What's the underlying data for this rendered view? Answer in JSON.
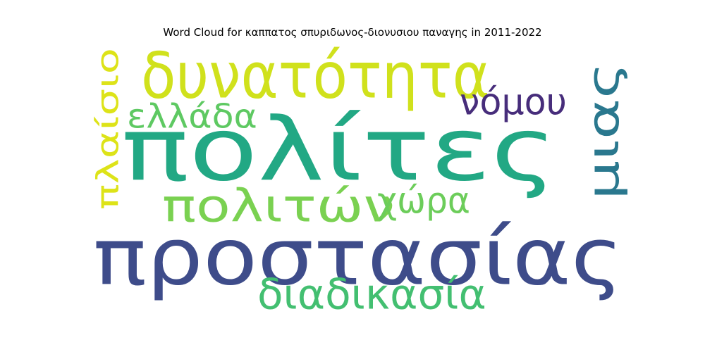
{
  "chart_data": {
    "type": "wordcloud",
    "title": "Word Cloud for καππατος σπυριδωνος-διονυσιου παναγης in 2011-2022",
    "background": "#ffffff",
    "colormap": "viridis",
    "words": [
      {
        "text": "πολίτες",
        "weight": 1.0,
        "color": "#22a884"
      },
      {
        "text": "προστασίας",
        "weight": 0.93,
        "color": "#3e4c8a"
      },
      {
        "text": "δυνατότητα",
        "weight": 0.62,
        "color": "#d0e11c"
      },
      {
        "text": "μιας",
        "weight": 0.56,
        "color": "#2a788e"
      },
      {
        "text": "πλαίσιο",
        "weight": 0.48,
        "color": "#dde318"
      },
      {
        "text": "πολιτών",
        "weight": 0.47,
        "color": "#7ad151"
      },
      {
        "text": "διαδικασία",
        "weight": 0.44,
        "color": "#43bf71"
      },
      {
        "text": "χώρα",
        "weight": 0.43,
        "color": "#6ccd5a"
      },
      {
        "text": "ελλάδα",
        "weight": 0.39,
        "color": "#5ec962"
      },
      {
        "text": "νόμου",
        "weight": 0.39,
        "color": "#472d7b"
      }
    ]
  }
}
